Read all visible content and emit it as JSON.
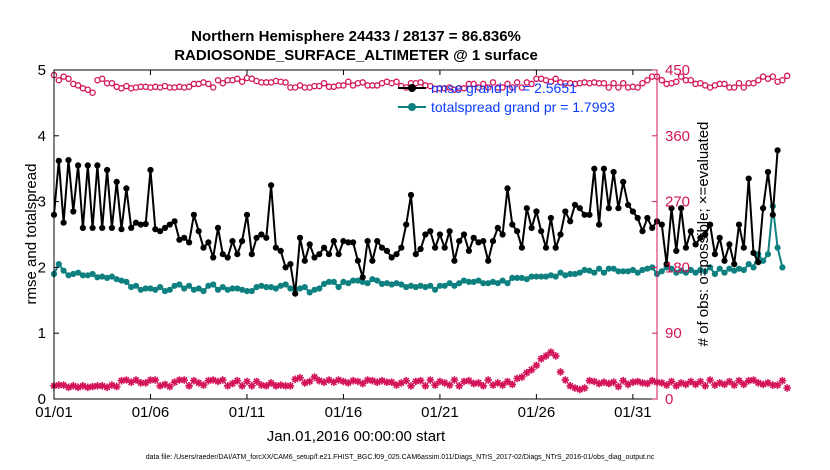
{
  "colors": {
    "rmse": "#000000",
    "spread": "#0e8080",
    "obs": "#d4145a",
    "legend_text": "#0a3cff"
  },
  "chart_data": {
    "type": "line",
    "title": "Northern Hemisphere 24433 / 28137 = 86.836%",
    "subtitle": "RADIOSONDE_SURFACE_ALTIMETER @ 1 surface",
    "xlabel": "Jan.01,2016 00:00:00 start",
    "ylabel": "rmse and totalspread",
    "ylabel_right": "# of obs: o=possible; ×=evaluated",
    "xlim": [
      1,
      32.25
    ],
    "ylim": [
      0,
      5
    ],
    "ylim_right": [
      0,
      450
    ],
    "xticks": [
      {
        "value": 1,
        "label": "01/01"
      },
      {
        "value": 6,
        "label": "01/06"
      },
      {
        "value": 11,
        "label": "01/11"
      },
      {
        "value": 16,
        "label": "01/16"
      },
      {
        "value": 21,
        "label": "01/21"
      },
      {
        "value": 26,
        "label": "01/26"
      },
      {
        "value": 31,
        "label": "01/31"
      }
    ],
    "yticks": [
      0,
      1,
      2,
      3,
      4,
      5
    ],
    "yticks_right": [
      0,
      90,
      180,
      270,
      360,
      450
    ],
    "x_start": 1,
    "x_step": 0.25,
    "legend": [
      {
        "name": "rmse grand pr = 2.5651",
        "series": "rmse"
      },
      {
        "name": "totalspread grand pr = 1.7993",
        "series": "spread"
      }
    ],
    "footer": "data file: /Users/raeder/DAI/ATM_forcXX/CAM6_setup/f.e21.FHIST_BGC.f09_025.CAM6assim.011/Diags_NTrS_2017-02/Diags_NTrS_2016-01/obs_diag_output.nc",
    "series": [
      {
        "name": "rmse",
        "axis": "left",
        "values": [
          2.8,
          3.62,
          2.68,
          3.63,
          2.85,
          3.55,
          2.6,
          3.55,
          2.6,
          3.55,
          2.6,
          3.48,
          2.6,
          3.3,
          2.58,
          3.2,
          2.6,
          2.68,
          2.65,
          2.66,
          3.48,
          2.58,
          2.55,
          2.6,
          2.65,
          2.7,
          2.42,
          2.45,
          2.38,
          2.8,
          2.55,
          2.3,
          2.38,
          2.15,
          2.6,
          2.2,
          2.15,
          2.4,
          2.2,
          2.4,
          2.8,
          2.2,
          2.45,
          2.5,
          2.45,
          3.25,
          2.3,
          2.25,
          2.0,
          2.05,
          1.6,
          2.45,
          2.1,
          2.35,
          2.15,
          2.2,
          2.3,
          2.2,
          2.4,
          2.2,
          2.4,
          2.38,
          2.38,
          2.1,
          1.85,
          2.4,
          2.1,
          2.4,
          2.3,
          2.25,
          2.15,
          2.2,
          2.3,
          2.65,
          3.1,
          2.2,
          2.28,
          2.5,
          2.55,
          2.3,
          2.5,
          2.3,
          2.55,
          2.1,
          2.4,
          2.5,
          2.25,
          2.45,
          2.38,
          2.4,
          2.1,
          2.4,
          2.6,
          2.5,
          3.2,
          2.65,
          2.55,
          2.3,
          2.9,
          2.6,
          2.85,
          2.55,
          2.3,
          2.75,
          2.3,
          2.5,
          2.85,
          2.7,
          2.95,
          2.9,
          2.8,
          2.8,
          3.5,
          2.65,
          3.5,
          2.9,
          3.45,
          2.9,
          3.3,
          2.95,
          2.85,
          2.75,
          2.55,
          2.75,
          2.6,
          2.7,
          2.65,
          2.05,
          2.9,
          2.25,
          2.9,
          2.3,
          2.55,
          2.35,
          2.45,
          2.5,
          2.65,
          2.2,
          2.45,
          2.1,
          2.35,
          2.05,
          2.65,
          2.3,
          3.35,
          2.22,
          2.08,
          2.9,
          3.45,
          2.8,
          3.78
        ]
      },
      {
        "name": "totalspread",
        "axis": "left",
        "values": [
          1.9,
          2.05,
          1.95,
          1.88,
          1.9,
          1.92,
          1.88,
          1.88,
          1.9,
          1.85,
          1.86,
          1.84,
          1.86,
          1.82,
          1.8,
          1.78,
          1.7,
          1.72,
          1.66,
          1.68,
          1.68,
          1.66,
          1.7,
          1.64,
          1.66,
          1.72,
          1.74,
          1.68,
          1.72,
          1.66,
          1.68,
          1.64,
          1.72,
          1.74,
          1.66,
          1.7,
          1.66,
          1.68,
          1.68,
          1.66,
          1.64,
          1.64,
          1.7,
          1.72,
          1.7,
          1.7,
          1.68,
          1.72,
          1.74,
          1.68,
          1.66,
          1.68,
          1.7,
          1.62,
          1.66,
          1.68,
          1.75,
          1.78,
          1.78,
          1.7,
          1.78,
          1.76,
          1.8,
          1.8,
          1.78,
          1.76,
          1.82,
          1.8,
          1.75,
          1.76,
          1.74,
          1.76,
          1.74,
          1.7,
          1.72,
          1.7,
          1.72,
          1.7,
          1.72,
          1.66,
          1.72,
          1.72,
          1.76,
          1.72,
          1.76,
          1.8,
          1.78,
          1.78,
          1.8,
          1.76,
          1.76,
          1.78,
          1.76,
          1.8,
          1.76,
          1.84,
          1.84,
          1.84,
          1.82,
          1.86,
          1.86,
          1.86,
          1.86,
          1.88,
          1.86,
          1.92,
          1.88,
          1.9,
          1.9,
          1.92,
          1.96,
          1.95,
          1.92,
          1.98,
          1.92,
          1.98,
          1.98,
          1.94,
          1.94,
          1.94,
          1.96,
          1.92,
          1.96,
          1.98,
          2.0,
          1.9,
          1.94,
          2.0,
          1.98,
          1.92,
          1.95,
          1.92,
          1.96,
          1.92,
          1.96,
          1.94,
          2.0,
          1.9,
          1.98,
          1.92,
          1.98,
          1.95,
          1.98,
          1.96,
          2.05,
          2.0,
          2.2,
          2.1,
          2.2,
          2.93,
          2.3,
          2.0
        ]
      },
      {
        "name": "obs_possible",
        "axis": "right",
        "values": [
          443,
          436,
          441,
          438,
          431,
          429,
          425,
          423,
          419,
          436,
          438,
          432,
          432,
          427,
          425,
          428,
          425,
          426,
          427,
          427,
          426,
          427,
          426,
          428,
          426,
          426,
          427,
          426,
          427,
          431,
          431,
          433,
          431,
          426,
          436,
          432,
          436,
          436,
          438,
          434,
          439,
          438,
          435,
          433,
          433,
          433,
          435,
          434,
          433,
          426,
          426,
          429,
          426,
          426,
          428,
          428,
          432,
          427,
          427,
          429,
          429,
          434,
          429,
          432,
          433,
          429,
          429,
          429,
          432,
          434,
          432,
          434,
          428,
          426,
          432,
          432,
          433,
          429,
          428,
          424,
          425,
          425,
          426,
          423,
          425,
          425,
          431,
          431,
          426,
          431,
          426,
          433,
          426,
          426,
          431,
          426,
          433,
          426,
          433,
          431,
          438,
          438,
          436,
          434,
          438,
          433,
          432,
          432,
          431,
          432,
          433,
          432,
          433,
          432,
          432,
          426,
          432,
          426,
          432,
          426,
          427,
          426,
          432,
          436,
          441,
          441,
          436,
          431,
          432,
          434,
          441,
          436,
          436,
          431,
          432,
          429,
          426,
          429,
          431,
          431,
          426,
          426,
          432,
          426,
          432,
          432,
          436,
          441,
          438,
          441,
          434,
          436,
          442
        ]
      },
      {
        "name": "obs_evaluated",
        "axis": "right",
        "values": [
          18,
          19,
          19,
          16,
          18,
          16,
          18,
          16,
          17,
          18,
          18,
          16,
          19,
          17,
          25,
          26,
          23,
          26,
          22,
          22,
          26,
          26,
          18,
          20,
          17,
          23,
          26,
          26,
          18,
          25,
          22,
          19,
          25,
          26,
          24,
          26,
          18,
          21,
          25,
          18,
          24,
          18,
          24,
          19,
          18,
          22,
          18,
          19,
          18,
          18,
          27,
          29,
          22,
          24,
          30,
          25,
          23,
          26,
          23,
          26,
          24,
          22,
          25,
          24,
          21,
          26,
          25,
          23,
          25,
          23,
          23,
          19,
          22,
          25,
          18,
          24,
          25,
          18,
          26,
          19,
          24,
          22,
          19,
          26,
          18,
          24,
          25,
          21,
          22,
          18,
          26,
          19,
          22,
          19,
          24,
          20,
          28,
          30,
          36,
          40,
          46,
          55,
          59,
          64,
          59,
          37,
          26,
          18,
          15,
          13,
          15,
          25,
          24,
          21,
          23,
          21,
          23,
          17,
          25,
          20,
          23,
          24,
          22,
          21,
          25,
          23,
          22,
          19,
          24,
          18,
          22,
          20,
          24,
          20,
          24,
          18,
          26,
          19,
          22,
          20,
          24,
          19,
          25,
          20,
          25,
          26,
          22,
          20,
          22,
          19,
          19,
          25,
          15
        ]
      }
    ]
  }
}
